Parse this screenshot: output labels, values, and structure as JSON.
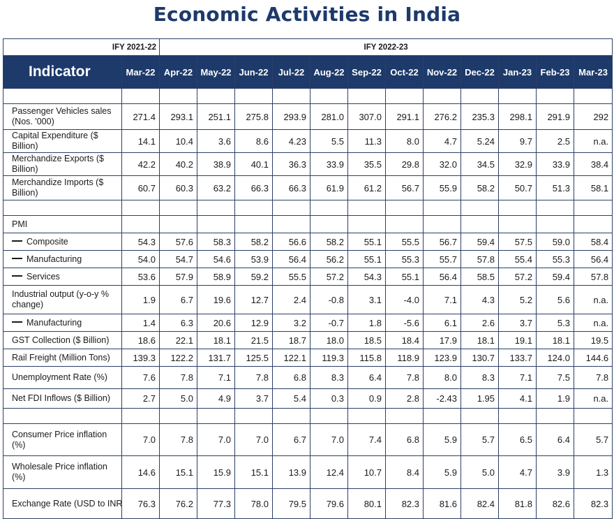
{
  "title": "Economic Activities in India",
  "fiscal_years": {
    "prev": "IFY 2021-22",
    "current": "IFY 2022-23"
  },
  "header": {
    "indicator": "Indicator",
    "months": [
      "Mar-22",
      "Apr-22",
      "May-22",
      "Jun-22",
      "Jul-22",
      "Aug-22",
      "Sep-22",
      "Oct-22",
      "Nov-22",
      "Dec-22",
      "Jan-23",
      "Feb-23",
      "Mar-23"
    ]
  },
  "rows": [
    {
      "type": "blank"
    },
    {
      "type": "data",
      "label": "Passenger Vehicles sales (Nos. '000)",
      "values": [
        "271.4",
        "293.1",
        "251.1",
        "275.8",
        "293.9",
        "281.0",
        "307.0",
        "291.1",
        "276.2",
        "235.3",
        "298.1",
        "291.9",
        "292"
      ]
    },
    {
      "type": "data",
      "label": "Capital Expenditure ($ Billion)",
      "values": [
        "14.1",
        "10.4",
        "3.6",
        "8.6",
        "4.23",
        "5.5",
        "11.3",
        "8.0",
        "4.7",
        "5.24",
        "9.7",
        "2.5",
        "n.a."
      ]
    },
    {
      "type": "data",
      "label": "Merchandize Exports ($ Billion)",
      "values": [
        "42.2",
        "40.2",
        "38.9",
        "40.1",
        "36.3",
        "33.9",
        "35.5",
        "29.8",
        "32.0",
        "34.5",
        "32.9",
        "33.9",
        "38.4"
      ]
    },
    {
      "type": "data",
      "label": "Merchandize Imports ($ Billion)",
      "values": [
        "60.7",
        "60.3",
        "63.2",
        "66.3",
        "66.3",
        "61.9",
        "61.2",
        "56.7",
        "55.9",
        "58.2",
        "50.7",
        "51.3",
        "58.1"
      ]
    },
    {
      "type": "blank"
    },
    {
      "type": "section",
      "label": "PMI"
    },
    {
      "type": "data",
      "sub": true,
      "label": "Composite",
      "values": [
        "54.3",
        "57.6",
        "58.3",
        "58.2",
        "56.6",
        "58.2",
        "55.1",
        "55.5",
        "56.7",
        "59.4",
        "57.5",
        "59.0",
        "58.4"
      ]
    },
    {
      "type": "data",
      "sub": true,
      "label": "Manufacturing",
      "values": [
        "54.0",
        "54.7",
        "54.6",
        "53.9",
        "56.4",
        "56.2",
        "55.1",
        "55.3",
        "55.7",
        "57.8",
        "55.4",
        "55.3",
        "56.4"
      ]
    },
    {
      "type": "data",
      "sub": true,
      "label": "Services",
      "values": [
        "53.6",
        "57.9",
        "58.9",
        "59.2",
        "55.5",
        "57.2",
        "54.3",
        "55.1",
        "56.4",
        "58.5",
        "57.2",
        "59.4",
        "57.8"
      ]
    },
    {
      "type": "data",
      "label": "Industrial output (y-o-y % change)",
      "values": [
        "1.9",
        "6.7",
        "19.6",
        "12.7",
        "2.4",
        "-0.8",
        "3.1",
        "-4.0",
        "7.1",
        "4.3",
        "5.2",
        "5.6",
        "n.a."
      ]
    },
    {
      "type": "data",
      "sub": true,
      "label": "Manufacturing",
      "values": [
        "1.4",
        "6.3",
        "20.6",
        "12.9",
        "3.2",
        "-0.7",
        "1.8",
        "-5.6",
        "6.1",
        "2.6",
        "3.7",
        "5.3",
        "n.a."
      ]
    },
    {
      "type": "data",
      "label": "GST Collection ($ Billion)",
      "values": [
        "18.6",
        "22.1",
        "18.1",
        "21.5",
        "18.7",
        "18.0",
        "18.5",
        "18.4",
        "17.9",
        "18.1",
        "19.1",
        "18.1",
        "19.5"
      ]
    },
    {
      "type": "data",
      "label": "Rail Freight (Million Tons)",
      "values": [
        "139.3",
        "122.2",
        "131.7",
        "125.5",
        "122.1",
        "119.3",
        "115.8",
        "118.9",
        "123.9",
        "130.7",
        "133.7",
        "124.0",
        "144.6"
      ]
    },
    {
      "type": "data",
      "label": "Unemployment Rate (%)",
      "values": [
        "7.6",
        "7.8",
        "7.1",
        "7.8",
        "6.8",
        "8.3",
        "6.4",
        "7.8",
        "8.0",
        "8.3",
        "7.1",
        "7.5",
        "7.8"
      ]
    },
    {
      "type": "data",
      "label": "Net FDI Inflows ($ Billion)",
      "values": [
        "2.7",
        "5.0",
        "4.9",
        "3.7",
        "5.4",
        "0.3",
        "0.9",
        "2.8",
        "-2.43",
        "1.95",
        "4.1",
        "1.9",
        "n.a."
      ]
    },
    {
      "type": "blank"
    },
    {
      "type": "data",
      "label": "Consumer Price inflation (%)",
      "values": [
        "7.0",
        "7.8",
        "7.0",
        "7.0",
        "6.7",
        "7.0",
        "7.4",
        "6.8",
        "5.9",
        "5.7",
        "6.5",
        "6.4",
        "5.7"
      ]
    },
    {
      "type": "data",
      "label": "Wholesale Price inflation (%)",
      "values": [
        "14.6",
        "15.1",
        "15.9",
        "15.1",
        "13.9",
        "12.4",
        "10.7",
        "8.4",
        "5.9",
        "5.0",
        "4.7",
        "3.9",
        "1.3"
      ]
    },
    {
      "type": "data",
      "label": "Exchange Rate (USD to INR)",
      "values": [
        "76.3",
        "76.2",
        "77.3",
        "78.0",
        "79.5",
        "79.6",
        "80.1",
        "82.3",
        "81.6",
        "82.4",
        "81.8",
        "82.6",
        "82.3"
      ]
    }
  ]
}
